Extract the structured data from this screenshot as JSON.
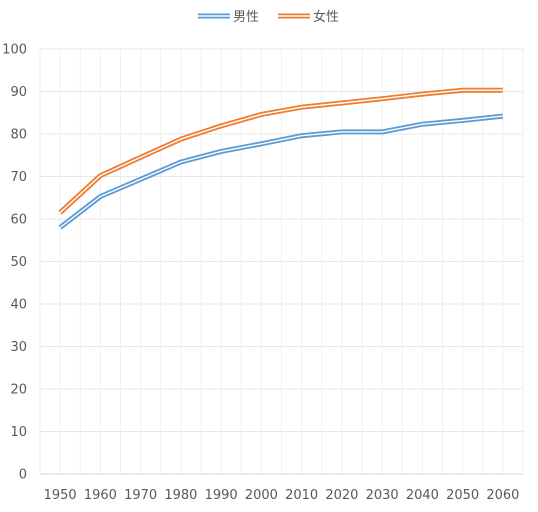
{
  "chart_data": {
    "type": "line",
    "categories": [
      "1950",
      "1960",
      "1970",
      "1980",
      "1990",
      "2000",
      "2010",
      "2020",
      "2030",
      "2040",
      "2050",
      "2060"
    ],
    "x": [
      1950,
      1955,
      1960,
      1965,
      1970,
      1975,
      1980,
      1985,
      1990,
      1995,
      2000,
      2005,
      2010,
      2015,
      2020,
      2025,
      2030,
      2035,
      2040,
      2045,
      2050,
      2055,
      2060
    ],
    "series": [
      {
        "name": "男性",
        "color": "#5B9BD5",
        "values": [
          58.0,
          null,
          65.3,
          null,
          null,
          null,
          73.4,
          null,
          75.9,
          null,
          77.7,
          null,
          79.6,
          null,
          80.5,
          null,
          80.5,
          null,
          82.3,
          null,
          83.2,
          null,
          84.2
        ]
      },
      {
        "name": "女性",
        "color": "#ED7D31",
        "values": [
          61.5,
          null,
          70.2,
          null,
          null,
          null,
          78.8,
          null,
          81.9,
          null,
          84.6,
          null,
          86.3,
          null,
          87.3,
          null,
          88.3,
          null,
          89.4,
          null,
          90.3,
          null,
          90.3
        ]
      }
    ],
    "y_ticks": [
      "0",
      "10",
      "20",
      "30",
      "40",
      "50",
      "60",
      "70",
      "80",
      "90",
      "100"
    ],
    "ylim": [
      0,
      100
    ],
    "grid": true,
    "legend": "top-center"
  }
}
